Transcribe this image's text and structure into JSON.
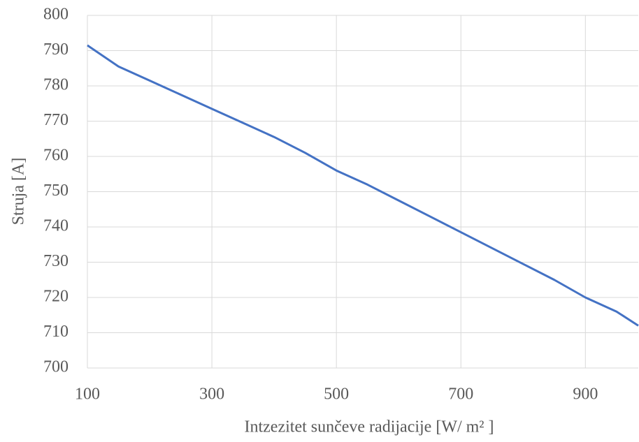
{
  "chart_data": {
    "type": "line",
    "x_label": "Intzezitet sunčeve radijacije [W/ m² ]",
    "y_label": "Struja [A]",
    "x": [
      100,
      150,
      200,
      250,
      300,
      350,
      400,
      450,
      500,
      550,
      600,
      650,
      700,
      750,
      800,
      850,
      900,
      950,
      985
    ],
    "series": [
      {
        "name": "Struja",
        "color": "#4472c4",
        "values": [
          791.5,
          785.5,
          781.5,
          777.5,
          773.5,
          769.5,
          765.5,
          761,
          756,
          752,
          747.5,
          743,
          738.5,
          734,
          729.5,
          725,
          720,
          716,
          712
        ]
      }
    ],
    "xlim": [
      100,
      985
    ],
    "xticks": [
      100,
      300,
      500,
      700,
      900
    ],
    "ylim": [
      700,
      800
    ],
    "yticks": [
      700,
      710,
      720,
      730,
      740,
      750,
      760,
      770,
      780,
      790,
      800
    ],
    "grid": true
  }
}
